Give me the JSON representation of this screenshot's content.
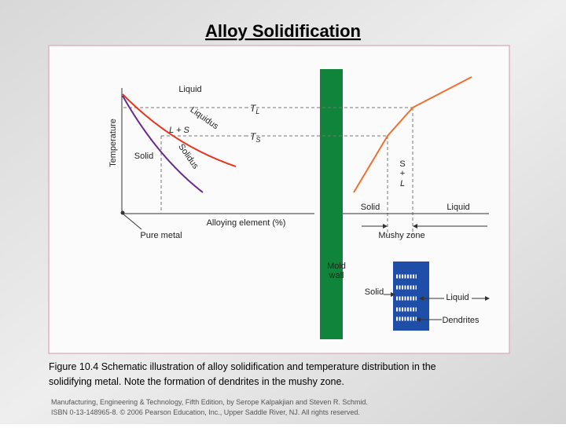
{
  "header": {
    "title": "Alloy Solidification"
  },
  "figure": {
    "phase_diagram": {
      "axis_y": "Temperature",
      "axis_x": "Alloying element (%)",
      "origin": "Pure metal",
      "region_liquid": "Liquid",
      "region_mix": "L + S",
      "region_solid": "Solid",
      "curve_liquidus": "Liquidus",
      "curve_solidus": "Solidus",
      "t_liquidus": {
        "symbol": "T",
        "subscript": "L"
      },
      "t_solidus": {
        "symbol": "T",
        "subscript": "S"
      }
    },
    "mold_wall": [
      "Mold",
      "wall"
    ],
    "profile": {
      "mix": [
        "S",
        "+",
        "L"
      ],
      "solid": "Solid",
      "liquid": "Liquid",
      "mushy_zone": "Mushy zone"
    },
    "inset": {
      "solid": "Solid",
      "liquid": "Liquid",
      "dendrites": "Dendrites"
    }
  },
  "caption": [
    "Figure 10.4  Schematic illustration of alloy solidification and temperature distribution in the",
    "solidifying metal.  Note the formation of dendrites in the mushy zone."
  ],
  "footer": [
    "Manufacturing, Engineering & Technology, Fifth Edition, by Serope Kalpakjian and Steven R. Schmid.",
    "ISBN 0-13-148965-8. © 2006 Pearson Education, Inc., Upper Saddle River, NJ.  All rights reserved."
  ]
}
